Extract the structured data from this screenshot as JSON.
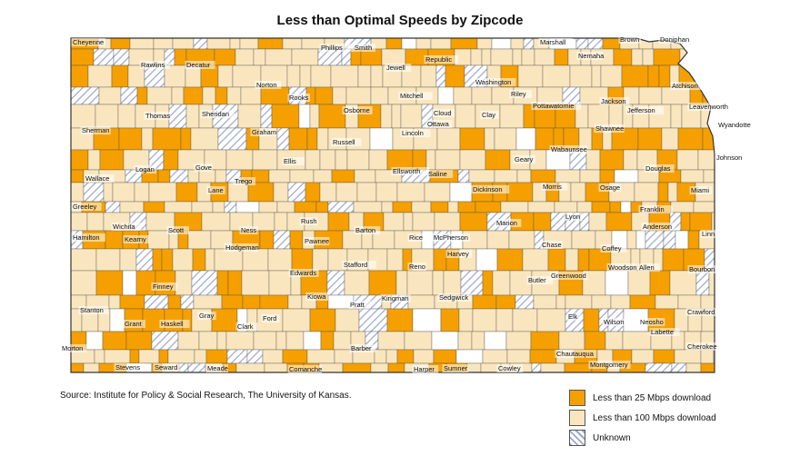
{
  "title": "Less than Optimal Speeds by Zipcode",
  "source": "Source: Institute for Policy & Social Research, The University of Kansas.",
  "colors": {
    "under25": "#f5a000",
    "under100": "#fae6be",
    "unknown_hatch": "#9aa6cc",
    "border": "#444444",
    "background": "#ffffff"
  },
  "legend": [
    {
      "label": "Less than 25 Mbps download",
      "pattern": "under25"
    },
    {
      "label": "Less than 100 Mbps download",
      "pattern": "under100"
    },
    {
      "label": "Unknown",
      "pattern": "unknown"
    }
  ],
  "counties": [
    "Cheyenne",
    "Rawlins",
    "Decatur",
    "Norton",
    "Phillips",
    "Smith",
    "Jewell",
    "Republic",
    "Washington",
    "Marshall",
    "Nemaha",
    "Brown",
    "Doniphan",
    "Atchison",
    "Sherman",
    "Thomas",
    "Sheridan",
    "Graham",
    "Rooks",
    "Osborne",
    "Mitchell",
    "Cloud",
    "Clay",
    "Riley",
    "Pottawatomie",
    "Jackson",
    "Jefferson",
    "Leavenworth",
    "Wyandotte",
    "Logan",
    "Gove",
    "Trego",
    "Ellis",
    "Russell",
    "Lincoln",
    "Ottawa",
    "Shawnee",
    "Wabaunsee",
    "Geary",
    "Johnson",
    "Wallace",
    "Greeley",
    "Wichita",
    "Scott",
    "Lane",
    "Ness",
    "Rush",
    "Barton",
    "Ellsworth",
    "Saline",
    "Dickinson",
    "Morris",
    "Osage",
    "Douglas",
    "Miami",
    "Franklin",
    "Hamilton",
    "Kearny",
    "Finney",
    "Hodgeman",
    "Pawnee",
    "Stafford",
    "Rice",
    "McPherson",
    "Marion",
    "Chase",
    "Lyon",
    "Coffey",
    "Anderson",
    "Linn",
    "Edwards",
    "Reno",
    "Harvey",
    "Butler",
    "Greenwood",
    "Woodson",
    "Allen",
    "Bourbon",
    "Stanton",
    "Grant",
    "Haskell",
    "Gray",
    "Ford",
    "Kiowa",
    "Pratt",
    "Kingman",
    "Sedgwick",
    "Elk",
    "Wilson",
    "Neosho",
    "Crawford",
    "Morton",
    "Stevens",
    "Seward",
    "Meade",
    "Clark",
    "Comanche",
    "Barber",
    "Harper",
    "Sumner",
    "Cowley",
    "Chautauqua",
    "Montgomery",
    "Labette",
    "Cherokee"
  ]
}
